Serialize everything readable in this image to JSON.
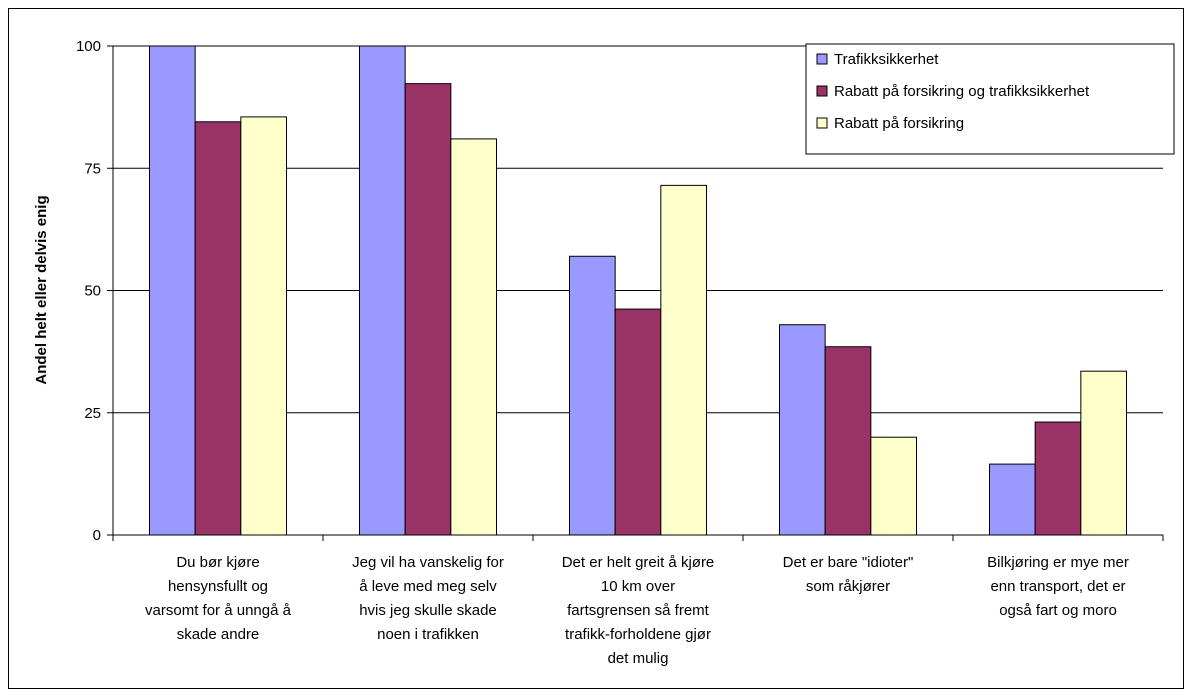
{
  "chart_data": {
    "type": "bar",
    "title": "",
    "xlabel": "",
    "ylabel": "Andel helt eller delvis enig",
    "ylim": [
      0,
      100
    ],
    "yticks": [
      0,
      25,
      50,
      75,
      100
    ],
    "grid": true,
    "legend_position": "top-right",
    "categories": [
      [
        "Du bør kjøre",
        "hensynsfullt og",
        "varsomt for å unngå å",
        "skade andre"
      ],
      [
        "Jeg vil ha vanskelig for",
        "å leve med meg selv",
        "hvis jeg skulle skade",
        "noen i trafikken"
      ],
      [
        "Det er helt greit å kjøre",
        "10 km over",
        "fartsgrensen så fremt",
        "trafikk-forholdene gjør",
        "det mulig"
      ],
      [
        "Det er bare \"idioter\"",
        "som råkjører"
      ],
      [
        "Bilkjøring er mye mer",
        "enn transport, det er",
        "også fart og moro"
      ]
    ],
    "series": [
      {
        "name": "Trafikksikkerhet",
        "color": "#9999ff",
        "values": [
          100,
          100,
          57,
          43,
          14.5
        ]
      },
      {
        "name": "Rabatt på forsikring og trafikksikkerhet",
        "color": "#993366",
        "values": [
          84.5,
          92.3,
          46.2,
          38.5,
          23.1
        ]
      },
      {
        "name": "Rabatt på forsikring",
        "color": "#ffffcc",
        "values": [
          85.5,
          81,
          71.5,
          20,
          33.5
        ]
      }
    ]
  }
}
